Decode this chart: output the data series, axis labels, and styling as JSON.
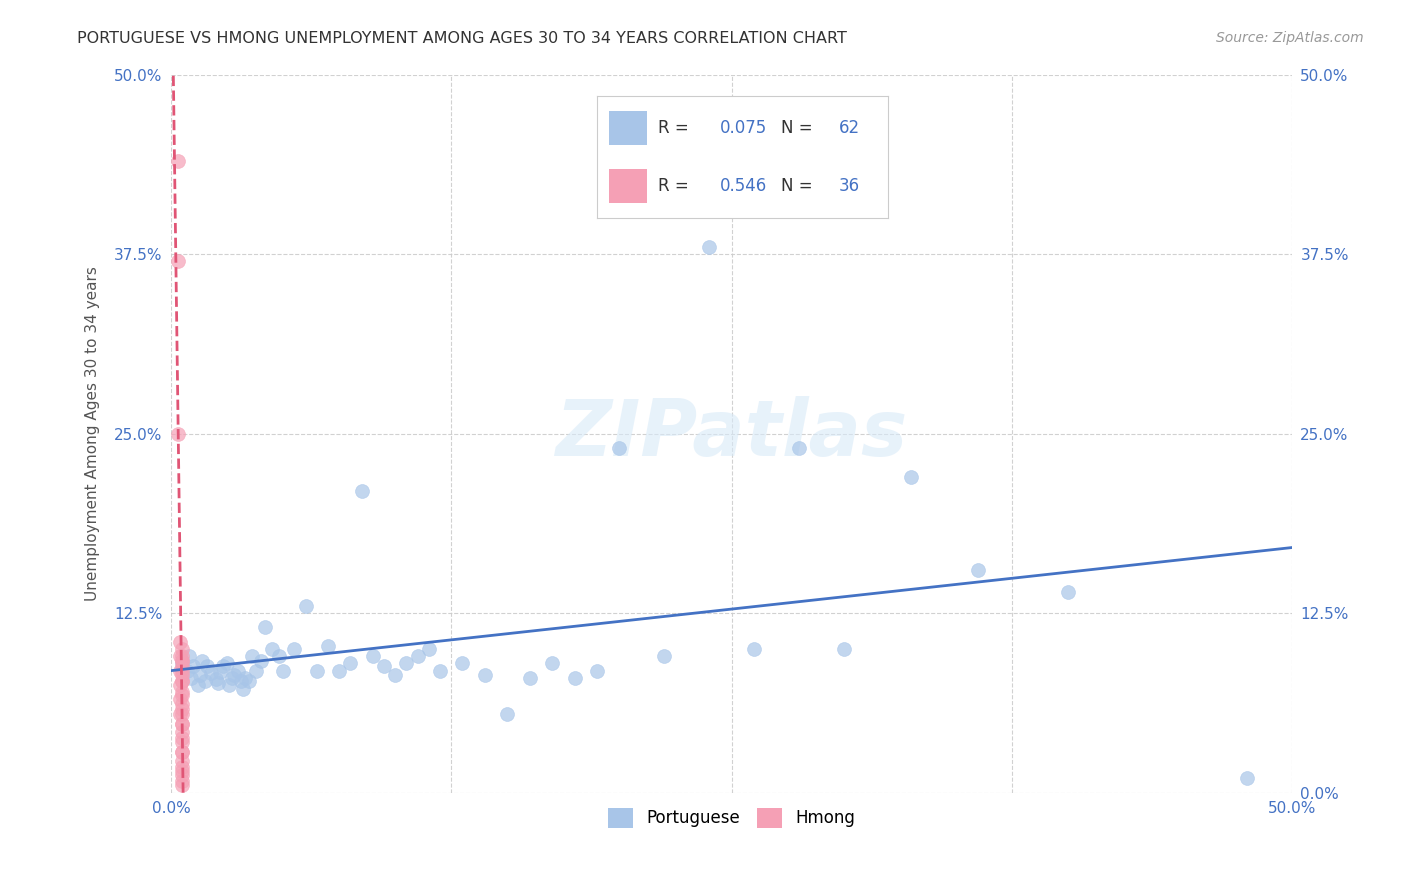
{
  "title": "PORTUGUESE VS HMONG UNEMPLOYMENT AMONG AGES 30 TO 34 YEARS CORRELATION CHART",
  "source": "Source: ZipAtlas.com",
  "ylabel": "Unemployment Among Ages 30 to 34 years",
  "xlim": [
    0,
    0.5
  ],
  "ylim": [
    0,
    0.5
  ],
  "yticks": [
    0.0,
    0.125,
    0.25,
    0.375,
    0.5
  ],
  "ytick_labels_left": [
    "",
    "12.5%",
    "25.0%",
    "37.5%",
    "50.0%"
  ],
  "ytick_labels_right": [
    "0.0%",
    "12.5%",
    "25.0%",
    "37.5%",
    "50.0%"
  ],
  "xtick_labels_bottom": [
    "0.0%",
    "",
    "",
    "",
    "50.0%"
  ],
  "portuguese_color": "#a8c5e8",
  "hmong_color": "#f5a0b5",
  "portuguese_line_color": "#4472c4",
  "hmong_line_color": "#e05575",
  "background_color": "#ffffff",
  "watermark": "ZIPatlas",
  "portuguese_x": [
    0.005,
    0.007,
    0.008,
    0.009,
    0.01,
    0.012,
    0.013,
    0.014,
    0.015,
    0.016,
    0.018,
    0.02,
    0.021,
    0.022,
    0.023,
    0.025,
    0.026,
    0.027,
    0.028,
    0.03,
    0.031,
    0.032,
    0.033,
    0.035,
    0.036,
    0.038,
    0.04,
    0.042,
    0.045,
    0.048,
    0.05,
    0.055,
    0.06,
    0.065,
    0.07,
    0.075,
    0.08,
    0.085,
    0.09,
    0.095,
    0.1,
    0.105,
    0.11,
    0.115,
    0.12,
    0.13,
    0.14,
    0.15,
    0.16,
    0.17,
    0.18,
    0.19,
    0.2,
    0.22,
    0.24,
    0.26,
    0.28,
    0.3,
    0.33,
    0.36,
    0.4,
    0.48
  ],
  "portuguese_y": [
    0.09,
    0.085,
    0.095,
    0.08,
    0.088,
    0.075,
    0.082,
    0.092,
    0.078,
    0.088,
    0.083,
    0.079,
    0.076,
    0.084,
    0.088,
    0.09,
    0.075,
    0.08,
    0.082,
    0.085,
    0.078,
    0.072,
    0.08,
    0.078,
    0.095,
    0.085,
    0.092,
    0.115,
    0.1,
    0.095,
    0.085,
    0.1,
    0.13,
    0.085,
    0.102,
    0.085,
    0.09,
    0.21,
    0.095,
    0.088,
    0.082,
    0.09,
    0.095,
    0.1,
    0.085,
    0.09,
    0.082,
    0.055,
    0.08,
    0.09,
    0.08,
    0.085,
    0.24,
    0.095,
    0.38,
    0.1,
    0.24,
    0.1,
    0.22,
    0.155,
    0.14,
    0.01
  ],
  "hmong_x": [
    0.003,
    0.003,
    0.003,
    0.004,
    0.004,
    0.004,
    0.004,
    0.004,
    0.004,
    0.005,
    0.005,
    0.005,
    0.005,
    0.005,
    0.005,
    0.005,
    0.005,
    0.005,
    0.005,
    0.005,
    0.005,
    0.005,
    0.005,
    0.005,
    0.005,
    0.005,
    0.005,
    0.005,
    0.005,
    0.005,
    0.005,
    0.005,
    0.005,
    0.005,
    0.005,
    0.005
  ],
  "hmong_y": [
    0.44,
    0.37,
    0.25,
    0.105,
    0.095,
    0.085,
    0.075,
    0.065,
    0.055,
    0.1,
    0.092,
    0.085,
    0.078,
    0.07,
    0.062,
    0.055,
    0.048,
    0.042,
    0.035,
    0.028,
    0.022,
    0.015,
    0.008,
    0.095,
    0.088,
    0.078,
    0.068,
    0.058,
    0.048,
    0.038,
    0.028,
    0.018,
    0.092,
    0.082,
    0.005,
    0.012
  ],
  "portuguese_R": 0.075,
  "portuguese_N": 62,
  "hmong_R": 0.546,
  "hmong_N": 36
}
